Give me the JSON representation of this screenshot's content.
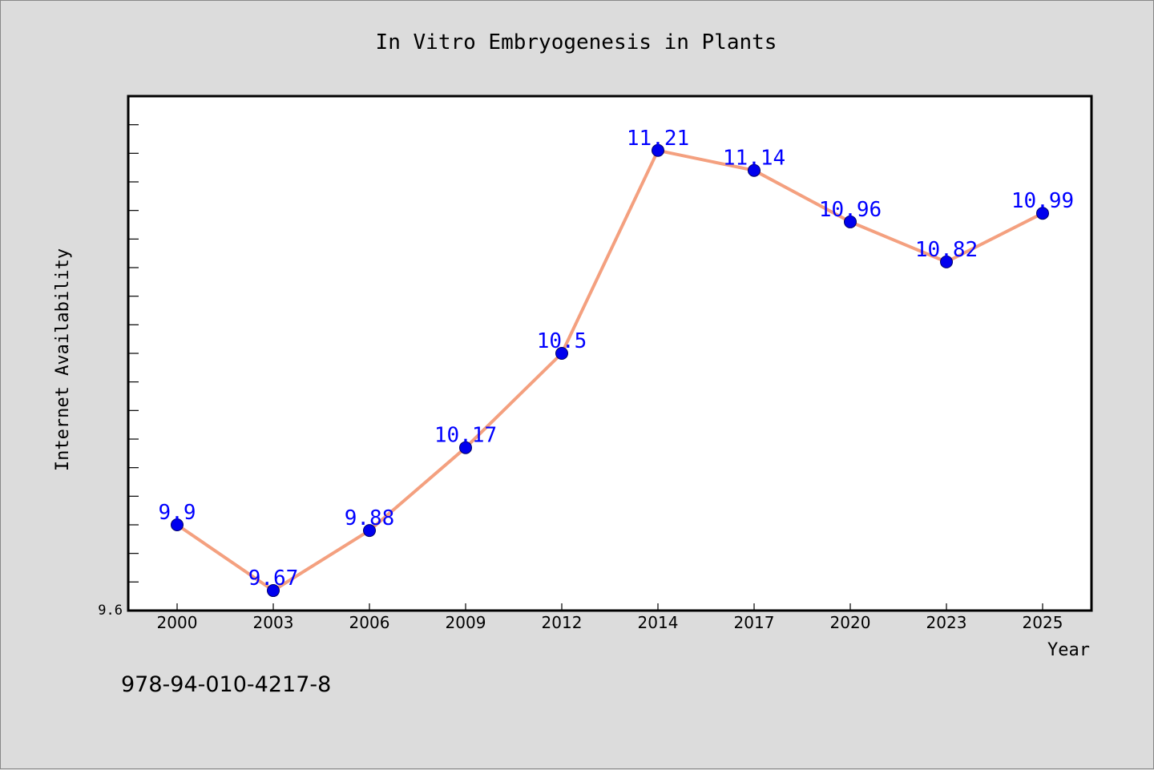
{
  "chart_data": {
    "type": "line",
    "title": "In Vitro Embryogenesis in Plants",
    "xlabel": "Year",
    "ylabel": "Internet Availability",
    "categories": [
      "2000",
      "2003",
      "2006",
      "2009",
      "2012",
      "2014",
      "2017",
      "2020",
      "2023",
      "2025"
    ],
    "series": [
      {
        "values": [
          9.9,
          9.67,
          9.88,
          10.17,
          10.5,
          11.21,
          11.14,
          10.96,
          10.82,
          10.99
        ],
        "data_labels": [
          "9.9",
          "9.67",
          "9.88",
          "10.17",
          "10.5",
          "11.21",
          "11.14",
          "10.96",
          "10.82",
          "10.99"
        ]
      }
    ],
    "y_tick_label": "9.6",
    "ylim": [
      9.6,
      11.4
    ],
    "grid": false,
    "line_color": "#f4a07f",
    "marker_color": "#0000ee",
    "label_color": "#0000ff"
  },
  "footer": {
    "isbn": "978-94-010-4217-8"
  }
}
